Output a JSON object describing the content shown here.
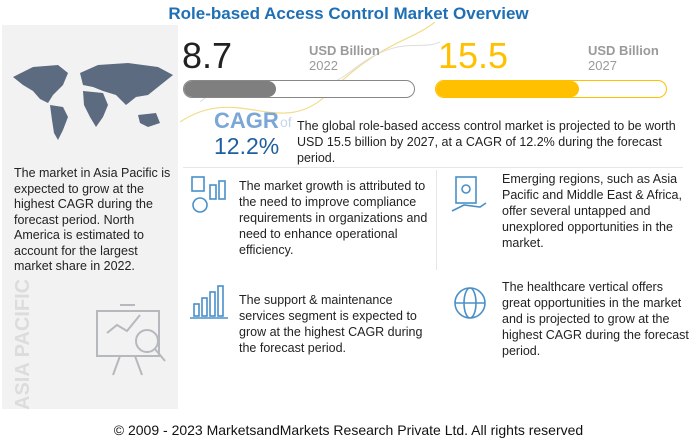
{
  "title": "Role-based Access Control Market Overview",
  "left_panel": {
    "text": "The market in Asia Pacific is expected to grow at the highest CAGR during the forecast period. North America is estimated to account for the largest market share in 2022.",
    "vertical_label": "ASIA PACIFIC",
    "icons": [
      "world-map-icon",
      "presentation-chart-icon"
    ]
  },
  "market_2022": {
    "value": "8.7",
    "unit": "USD Billion",
    "year": "2022",
    "bar_fill": 0.4,
    "color": "#7f7f7f"
  },
  "market_2027": {
    "value": "15.5",
    "unit": "USD Billion",
    "year": "2027",
    "bar_fill": 0.62,
    "color": "#ffc000"
  },
  "cagr": {
    "label": "CAGR",
    "of": "of",
    "value": "12.2%",
    "color": "#7ba7d6",
    "summary": "The global role-based access control market is projected to be worth USD 15.5 billion by 2027, at a CAGR of 12.2% during the forecast period."
  },
  "highlights": [
    {
      "icon": "compliance-chart-icon",
      "text": "The market growth is attributed to the need to improve compliance requirements in organizations and need to enhance operational efficiency."
    },
    {
      "icon": "money-hand-icon",
      "text": "Emerging regions, such as Asia Pacific and Middle East & Africa, offer several untapped and unexplored opportunities in the market."
    },
    {
      "icon": "growth-bar-chart-icon",
      "text": "The support & maintenance services segment is expected to grow at the highest CAGR during the forecast period."
    },
    {
      "icon": "globe-icon",
      "text": "The healthcare vertical offers great opportunities in the market and is projected to grow at the highest CAGR during the forecast period."
    }
  ],
  "footer": "© 2009 - 2023 MarketsandMarkets Research Private Ltd. All rights reserved"
}
